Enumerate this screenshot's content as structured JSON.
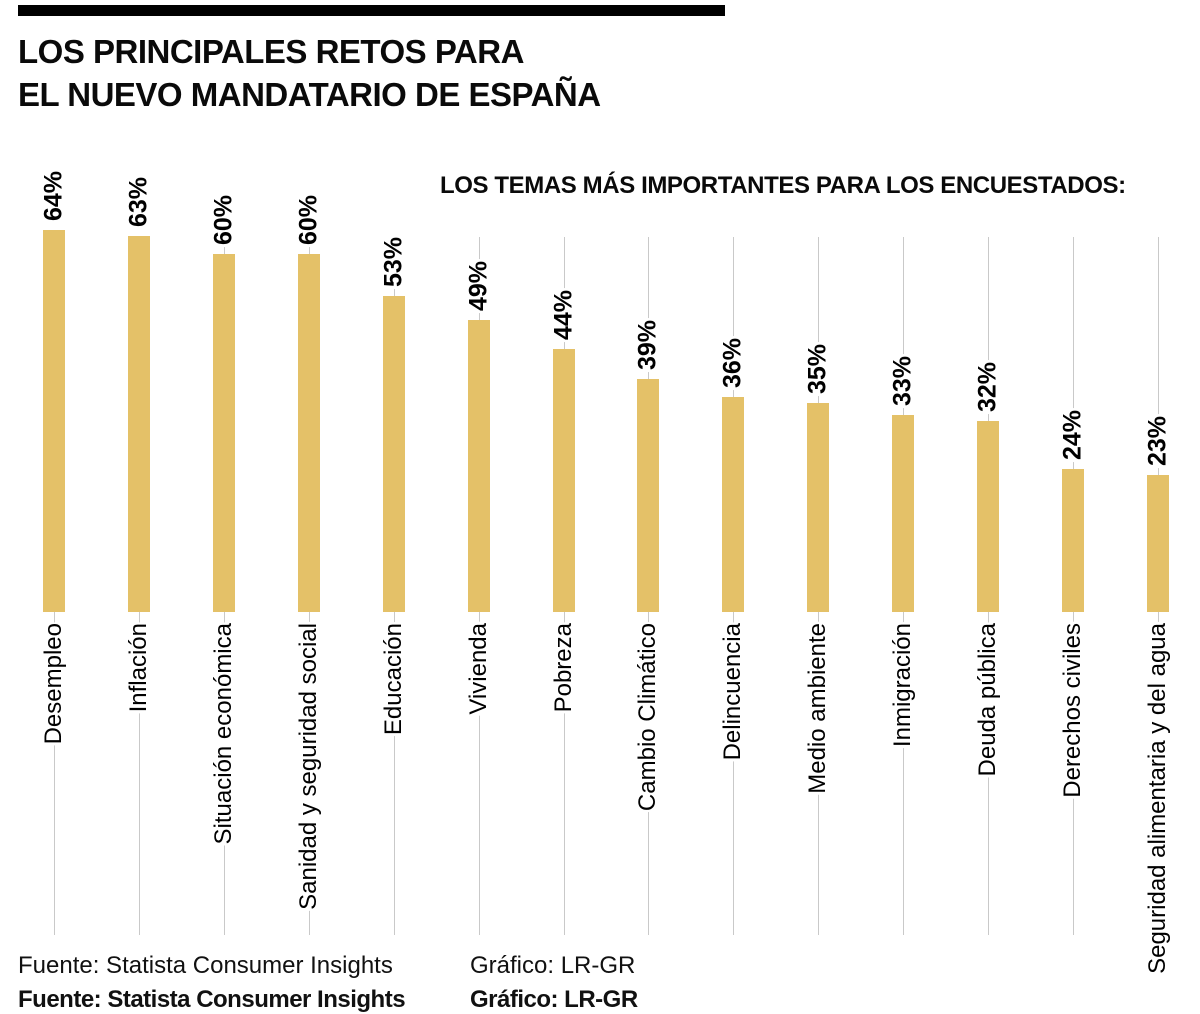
{
  "page": {
    "background": "#ffffff"
  },
  "header": {
    "rule_color": "#000000",
    "title_line1": "LOS PRINCIPALES RETOS PARA",
    "title_line2": "EL NUEVO MANDATARIO DE ESPAÑA",
    "subtitle": "LOS TEMAS MÁS IMPORTANTES PARA LOS ENCUESTADOS:"
  },
  "chart_data": {
    "type": "bar",
    "title": "LOS PRINCIPALES RETOS PARA EL NUEVO MANDATARIO DE ESPAÑA",
    "subtitle": "LOS TEMAS MÁS IMPORTANTES PARA LOS ENCUESTADOS:",
    "orientation": "vertical",
    "unit": "%",
    "categories": [
      "Desempleo",
      "Inflación",
      "Situación económica",
      "Sanidad y seguridad social",
      "Educación",
      "Vivienda",
      "Pobreza",
      "Cambio Climático",
      "Delincuencia",
      "Medio ambiente",
      "Inmigración",
      "Deuda pública",
      "Derechos civiles",
      "Seguridad alimentaria y del agua"
    ],
    "values": [
      64,
      63,
      60,
      60,
      53,
      49,
      44,
      39,
      36,
      35,
      33,
      32,
      24,
      23
    ],
    "value_labels": [
      "64%",
      "63%",
      "60%",
      "60%",
      "53%",
      "49%",
      "44%",
      "39%",
      "36%",
      "35%",
      "33%",
      "32%",
      "24%",
      "23%"
    ],
    "ylim": [
      0,
      64
    ],
    "bar_color": "#E4C168",
    "gridline_color": "#c9c9c9",
    "value_label_color": "#000000",
    "grid": "vertical-lines-per-category",
    "legend": "none"
  },
  "footer": {
    "source": "Fuente: Statista Consumer Insights",
    "credit": "Gráfico: LR-GR"
  }
}
